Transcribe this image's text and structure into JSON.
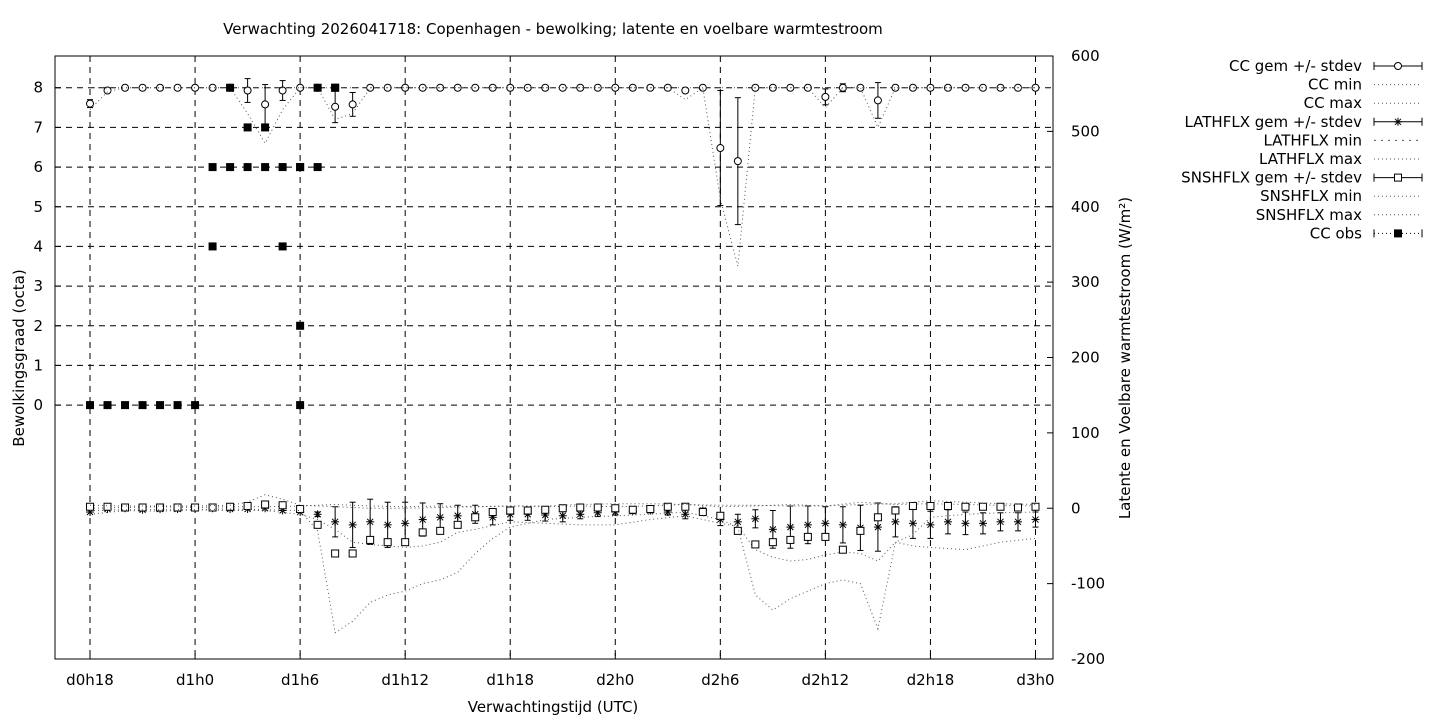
{
  "chart_data": {
    "type": "line",
    "title": "Verwachting 2026041718: Copenhagen - bewolking; latente en voelbare warmtestroom",
    "xlabel": "Verwachtingstijd (UTC)",
    "ylabel_left": "Bewolkingsgraad (octa)",
    "ylabel_right": "Latente en Voelbare warmtestroom (W/m²)",
    "x_ticks": [
      "d0h18",
      "d1h0",
      "d1h6",
      "d1h12",
      "d1h18",
      "d2h0",
      "d2h6",
      "d2h12",
      "d2h18",
      "d3h0"
    ],
    "x_range_hours": [
      -2,
      55
    ],
    "y_left_ticks": [
      0,
      1,
      2,
      3,
      4,
      5,
      6,
      7,
      8
    ],
    "y_left_range": [
      -6.4,
      8.8
    ],
    "y_right_ticks": [
      -200,
      -100,
      0,
      100,
      200,
      300,
      400,
      500,
      600
    ],
    "y_right_range": [
      -200,
      600
    ],
    "grid": true,
    "legend_position": "right outside",
    "legend": [
      "CC gem +/- stdev",
      "CC min",
      "CC max",
      "LATHFLX gem +/- stdev",
      "LATHFLX min",
      "LATHFLX max",
      "SNSHFLX gem +/- stdev",
      "SNSHFLX min",
      "SNSHFLX max",
      "CC obs"
    ],
    "series": [
      {
        "name": "CC gem +/- stdev",
        "axis": "left",
        "style": "circle-errorbar",
        "x": [
          0,
          1,
          2,
          3,
          4,
          5,
          6,
          7,
          8,
          9,
          10,
          11,
          12,
          13,
          14,
          15,
          16,
          17,
          18,
          19,
          20,
          21,
          22,
          23,
          24,
          25,
          26,
          27,
          28,
          29,
          30,
          31,
          32,
          33,
          34,
          35,
          36,
          37,
          38,
          39,
          40,
          41,
          42,
          43,
          44,
          45,
          46,
          47,
          48,
          49,
          50,
          51,
          52,
          53,
          54
        ],
        "y": [
          7.6,
          7.93,
          8,
          8,
          8,
          8,
          8,
          8,
          8,
          7.93,
          7.58,
          7.93,
          8,
          8,
          7.52,
          7.58,
          8,
          8,
          8,
          8,
          8,
          8,
          8,
          8,
          8,
          8,
          8,
          8,
          8,
          8,
          8,
          8,
          8,
          8,
          7.93,
          8,
          6.48,
          6.15,
          8,
          8,
          8,
          8,
          7.77,
          8,
          8,
          7.68,
          8,
          8,
          8,
          8,
          8,
          8,
          8,
          8,
          8
        ],
        "err": [
          0.1,
          0,
          0,
          0,
          0,
          0,
          0,
          0,
          0,
          0.3,
          0.5,
          0.25,
          0,
          0,
          0.4,
          0.3,
          0,
          0,
          0,
          0,
          0,
          0,
          0,
          0,
          0,
          0,
          0,
          0,
          0,
          0,
          0,
          0,
          0,
          0,
          0,
          0,
          1.45,
          1.6,
          0,
          0,
          0,
          0,
          0.2,
          0.1,
          0,
          0.45,
          0,
          0,
          0,
          0,
          0,
          0,
          0,
          0,
          0
        ]
      },
      {
        "name": "CC min",
        "axis": "left",
        "style": "dotted",
        "x": [
          0,
          1,
          2,
          3,
          4,
          5,
          6,
          7,
          8,
          9,
          10,
          11,
          12,
          13,
          14,
          15,
          16,
          17,
          18,
          19,
          20,
          21,
          22,
          23,
          24,
          25,
          26,
          27,
          28,
          29,
          30,
          31,
          32,
          33,
          34,
          35,
          36,
          37,
          38,
          39,
          40,
          41,
          42,
          43,
          44,
          45,
          46,
          47,
          48,
          49,
          50,
          51,
          52,
          53,
          54
        ],
        "y": [
          7.45,
          7.9,
          8,
          8,
          8,
          8,
          8,
          8,
          8,
          7.35,
          6.6,
          7.45,
          8,
          8,
          7.2,
          7.35,
          8,
          8,
          8,
          8,
          8,
          8,
          8,
          8,
          8,
          8,
          8,
          8,
          8,
          8,
          8,
          8,
          8,
          8,
          7.7,
          8,
          5.2,
          3.5,
          8,
          8,
          8,
          8,
          7.5,
          8,
          8,
          7,
          8,
          8,
          8,
          8,
          8,
          8,
          8,
          8,
          8
        ]
      },
      {
        "name": "CC max",
        "axis": "left",
        "style": "dotted",
        "x": [
          0,
          54
        ],
        "y": [
          8,
          8
        ]
      },
      {
        "name": "LATHFLX gem +/- stdev",
        "axis": "right",
        "style": "star-errorbar",
        "x": [
          0,
          1,
          2,
          3,
          4,
          5,
          6,
          7,
          8,
          9,
          10,
          11,
          12,
          13,
          14,
          15,
          16,
          17,
          18,
          19,
          20,
          21,
          22,
          23,
          24,
          25,
          26,
          27,
          28,
          29,
          30,
          31,
          32,
          33,
          34,
          35,
          36,
          37,
          38,
          39,
          40,
          41,
          42,
          43,
          44,
          45,
          46,
          47,
          48,
          49,
          50,
          51,
          52,
          53,
          54
        ],
        "y": [
          -5,
          -1,
          0,
          -2,
          -1,
          -1,
          0,
          0,
          -1,
          -1,
          0,
          -3,
          -5,
          -8,
          -18,
          -22,
          -18,
          -22,
          -20,
          -15,
          -12,
          -10,
          -8,
          -12,
          -8,
          -8,
          -9,
          -10,
          -8,
          -6,
          -5,
          -4,
          -3,
          -5,
          -8,
          -3,
          -15,
          -18,
          -14,
          -28,
          -25,
          -22,
          -20,
          -22,
          -26,
          -25,
          -18,
          -20,
          -22,
          -18,
          -20,
          -20,
          -18,
          -18,
          -15
        ],
        "err": [
          0,
          0,
          0,
          0,
          0,
          0,
          0,
          0,
          0,
          0,
          0,
          0,
          0,
          3,
          20,
          30,
          30,
          30,
          28,
          22,
          18,
          14,
          12,
          10,
          8,
          8,
          8,
          8,
          6,
          5,
          4,
          3,
          3,
          4,
          6,
          3,
          8,
          10,
          12,
          25,
          28,
          25,
          22,
          24,
          30,
          32,
          20,
          20,
          18,
          16,
          15,
          14,
          12,
          12,
          10
        ]
      },
      {
        "name": "LATHFLX min",
        "axis": "right",
        "style": "dotted",
        "x": [
          0,
          2,
          4,
          6,
          8,
          10,
          12,
          13,
          14,
          15,
          16,
          17,
          18,
          19,
          20,
          21,
          22,
          24,
          26,
          28,
          30,
          32,
          34,
          36,
          37,
          38,
          39,
          40,
          41,
          42,
          43,
          44,
          45,
          46,
          47,
          48,
          50,
          52,
          54
        ],
        "y": [
          -8,
          -3,
          -4,
          -2,
          -3,
          -3,
          -8,
          -15,
          -28,
          -45,
          -48,
          -50,
          -52,
          -50,
          -45,
          -32,
          -28,
          -18,
          -20,
          -22,
          -22,
          -15,
          -10,
          -20,
          -24,
          -55,
          -65,
          -70,
          -68,
          -62,
          -58,
          -60,
          -70,
          -45,
          -50,
          -52,
          -55,
          -45,
          -40
        ]
      },
      {
        "name": "LATHFLX max",
        "axis": "right",
        "style": "dotted",
        "x": [
          0,
          2,
          4,
          6,
          8,
          10,
          12,
          14,
          16,
          18,
          20,
          22,
          24,
          26,
          28,
          30,
          32,
          34,
          36,
          38,
          40,
          42,
          44,
          46,
          48,
          50,
          52,
          54
        ],
        "y": [
          0,
          1,
          2,
          1,
          2,
          2,
          3,
          5,
          3,
          2,
          3,
          2,
          3,
          2,
          3,
          2,
          3,
          5,
          2,
          3,
          5,
          3,
          8,
          5,
          6,
          5,
          4,
          3
        ]
      },
      {
        "name": "SNSHFLX gem +/- stdev",
        "axis": "right",
        "style": "square-errorbar",
        "x": [
          0,
          1,
          2,
          3,
          4,
          5,
          6,
          7,
          8,
          9,
          10,
          11,
          12,
          13,
          14,
          15,
          16,
          17,
          18,
          19,
          20,
          21,
          22,
          23,
          24,
          25,
          26,
          27,
          28,
          29,
          30,
          31,
          32,
          33,
          34,
          35,
          36,
          37,
          38,
          39,
          40,
          41,
          42,
          43,
          44,
          45,
          46,
          47,
          48,
          49,
          50,
          51,
          52,
          53,
          54
        ],
        "y": [
          2,
          2,
          1,
          1,
          1,
          1,
          1,
          1,
          2,
          3,
          5,
          4,
          -1,
          -22,
          -60,
          -60,
          -42,
          -45,
          -45,
          -32,
          -30,
          -22,
          -12,
          -5,
          -3,
          -3,
          -2,
          0,
          1,
          1,
          0,
          -2,
          -1,
          2,
          2,
          -5,
          -10,
          -30,
          -48,
          -45,
          -42,
          -38,
          -38,
          -55,
          -30,
          -12,
          -3,
          3,
          3,
          3,
          2,
          2,
          2,
          1,
          2
        ]
      },
      {
        "name": "SNSHFLX min",
        "axis": "right",
        "style": "dotted",
        "x": [
          0,
          2,
          4,
          6,
          8,
          10,
          12,
          13,
          14,
          15,
          16,
          17,
          18,
          19,
          20,
          21,
          22,
          23,
          24,
          26,
          28,
          30,
          32,
          34,
          36,
          37,
          38,
          39,
          40,
          41,
          42,
          43,
          44,
          45,
          46,
          47,
          48,
          50,
          52,
          54
        ],
        "y": [
          -3,
          -2,
          -2,
          -2,
          -1,
          -2,
          -3,
          -30,
          -165,
          -150,
          -125,
          -115,
          -110,
          -100,
          -95,
          -85,
          -60,
          -40,
          -25,
          -15,
          -12,
          -10,
          -8,
          -5,
          -15,
          -25,
          -115,
          -135,
          -120,
          -110,
          -100,
          -95,
          -100,
          -160,
          -45,
          -35,
          -12,
          -8,
          -6,
          -5
        ]
      },
      {
        "name": "SNSHFLX max",
        "axis": "right",
        "style": "dotted",
        "x": [
          0,
          2,
          4,
          6,
          8,
          9,
          10,
          11,
          12,
          14,
          16,
          18,
          20,
          22,
          24,
          26,
          28,
          30,
          32,
          34,
          36,
          38,
          40,
          42,
          44,
          46,
          48,
          50,
          52,
          54
        ],
        "y": [
          4,
          3,
          3,
          3,
          4,
          8,
          18,
          12,
          4,
          2,
          0,
          0,
          1,
          2,
          3,
          3,
          5,
          6,
          6,
          5,
          4,
          4,
          3,
          3,
          5,
          6,
          10,
          8,
          6,
          5
        ]
      },
      {
        "name": "CC obs",
        "axis": "left",
        "style": "filled-square-dotted",
        "x": [
          0,
          1,
          2,
          3,
          4,
          5,
          6,
          7,
          8,
          9,
          10,
          11,
          12,
          13,
          14
        ],
        "y": [
          0,
          0,
          0,
          0,
          0,
          0,
          0,
          4,
          8,
          7,
          7,
          4,
          6,
          6,
          8
        ],
        "extra_points": [
          [
            7,
            6
          ],
          [
            8,
            6
          ],
          [
            9,
            6
          ],
          [
            10,
            6
          ],
          [
            11,
            6
          ],
          [
            12,
            6
          ],
          [
            12,
            2
          ],
          [
            12,
            0
          ],
          [
            14,
            8
          ],
          [
            13,
            8
          ]
        ]
      }
    ]
  }
}
